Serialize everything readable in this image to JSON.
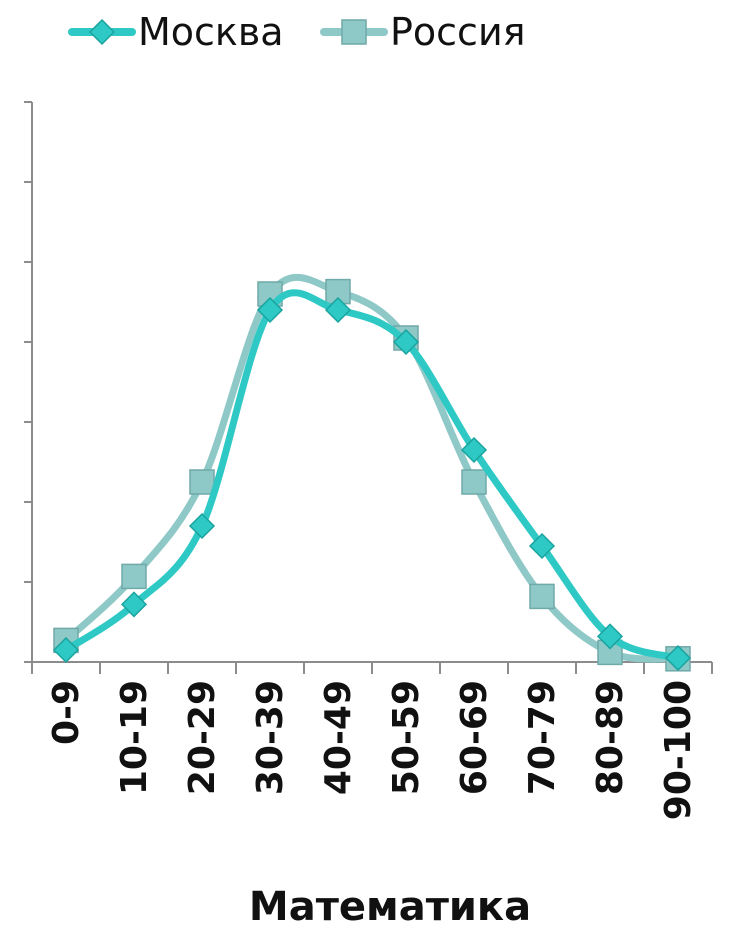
{
  "chart_data": {
    "type": "line",
    "title": "",
    "xlabel": "Математика",
    "ylabel": "",
    "categories": [
      "0-9",
      "10-19",
      "20-29",
      "30-39",
      "40-49",
      "50-59",
      "60-69",
      "70-79",
      "80-89",
      "90-100"
    ],
    "ylim": [
      0,
      7
    ],
    "grid": false,
    "legend_position": "top-left",
    "series": [
      {
        "name": "Москва",
        "color": "#2ec9c4",
        "marker": "diamond",
        "values": [
          0.15,
          0.72,
          1.7,
          4.4,
          4.4,
          4.0,
          2.65,
          1.45,
          0.32,
          0.05
        ]
      },
      {
        "name": "Россия",
        "color": "#8ec8c7",
        "marker": "square",
        "values": [
          0.27,
          1.07,
          2.25,
          4.6,
          4.63,
          4.05,
          2.25,
          0.82,
          0.12,
          0.04
        ]
      }
    ]
  }
}
